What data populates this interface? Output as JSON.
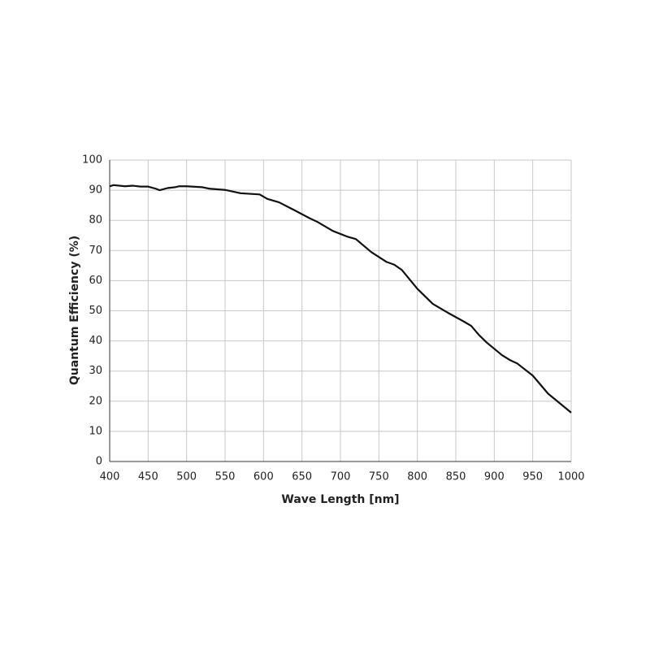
{
  "chart_data": {
    "type": "line",
    "x_label": "Wave Length [nm]",
    "y_label": "Quantum Efficiency (%)",
    "xlim": [
      400,
      1000
    ],
    "ylim": [
      0,
      100
    ],
    "xticks": [
      400,
      450,
      500,
      550,
      600,
      650,
      700,
      750,
      800,
      850,
      900,
      950,
      1000
    ],
    "yticks": [
      0,
      10,
      20,
      30,
      40,
      50,
      60,
      70,
      80,
      90,
      100
    ],
    "grid": true,
    "series": [
      {
        "color": "#111111",
        "x": [
          400,
          405,
          420,
          430,
          440,
          450,
          460,
          465,
          475,
          485,
          490,
          500,
          520,
          530,
          550,
          570,
          595,
          605,
          620,
          640,
          660,
          670,
          690,
          710,
          720,
          740,
          760,
          770,
          780,
          800,
          820,
          840,
          860,
          870,
          880,
          890,
          910,
          920,
          930,
          950,
          970,
          1000
        ],
        "values": [
          91.3,
          91.7,
          91.3,
          91.5,
          91.2,
          91.2,
          90.5,
          90.0,
          90.7,
          91.0,
          91.3,
          91.3,
          91.0,
          90.5,
          90.1,
          89.0,
          88.6,
          87.1,
          86.0,
          83.4,
          80.7,
          79.5,
          76.5,
          74.5,
          73.8,
          69.5,
          66.2,
          65.3,
          63.5,
          57.3,
          52.3,
          49.3,
          46.5,
          45.0,
          42.0,
          39.5,
          35.3,
          33.7,
          32.5,
          28.5,
          22.5,
          16.2
        ]
      }
    ]
  }
}
